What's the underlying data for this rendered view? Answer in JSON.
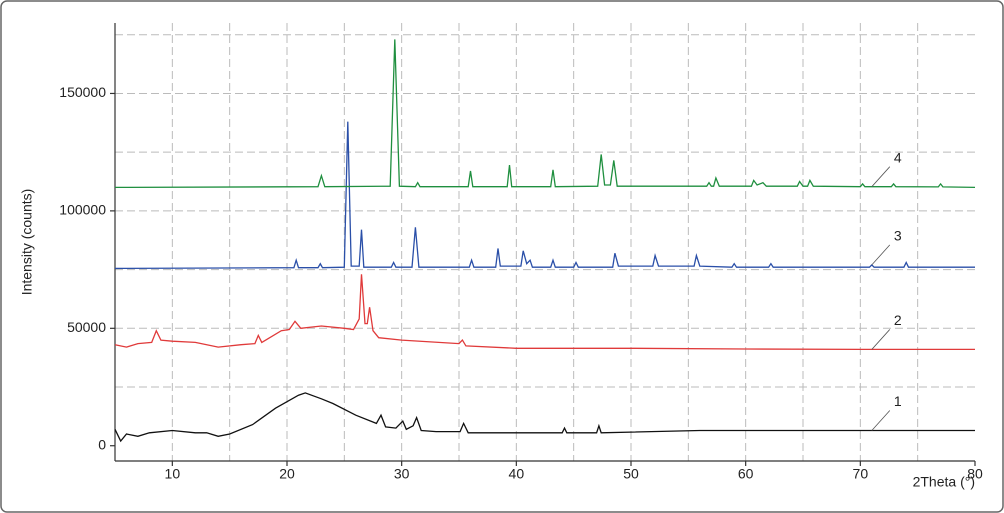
{
  "chart_data": {
    "type": "line",
    "x_label": "2Theta (°)",
    "y_label": "Intensity (counts)",
    "xlim": [
      5,
      80
    ],
    "ylim": [
      -6500,
      180000
    ],
    "xticks": [
      10,
      20,
      30,
      40,
      50,
      60,
      70,
      80
    ],
    "yticks": [
      0,
      50000,
      100000,
      150000
    ],
    "xgrid": [
      10,
      15,
      20,
      25,
      30,
      35,
      40,
      45,
      50,
      55,
      60,
      65,
      70,
      75
    ],
    "ygrid": [
      25000,
      50000,
      75000,
      100000,
      125000,
      150000,
      175000
    ],
    "grid": true,
    "series": [
      {
        "name": "1",
        "color": "#111111",
        "x": [
          5,
          5.5,
          6,
          7,
          8,
          10,
          12,
          13,
          14,
          15,
          17,
          19,
          21,
          21.6,
          23,
          24,
          26,
          27.8,
          28.2,
          28.6,
          29.5,
          30.1,
          30.4,
          31.0,
          31.3,
          31.7,
          33,
          35.1,
          35.4,
          35.8,
          40,
          44,
          44.2,
          44.4,
          47.0,
          47.2,
          47.4,
          56,
          60,
          70,
          80
        ],
        "values": [
          7000,
          2000,
          5000,
          4000,
          5500,
          6500,
          5500,
          5500,
          4000,
          5000,
          9000,
          16000,
          21500,
          22500,
          20000,
          18000,
          13000,
          9500,
          13000,
          8000,
          7500,
          10500,
          7000,
          8500,
          12000,
          6500,
          6000,
          6000,
          9500,
          5500,
          5500,
          5500,
          7500,
          5500,
          5500,
          8500,
          5500,
          6500,
          6500,
          6500,
          6500
        ]
      },
      {
        "name": "2",
        "color": "#e03a3a",
        "x": [
          5,
          6,
          7,
          8.2,
          8.6,
          9.0,
          10,
          12,
          14,
          16,
          17.2,
          17.5,
          17.8,
          19.5,
          20.2,
          20.7,
          21.2,
          23,
          25,
          25.8,
          26.3,
          26.5,
          26.8,
          27.0,
          27.2,
          27.5,
          28,
          30,
          35,
          35.3,
          35.6,
          40,
          45,
          50,
          60,
          70,
          80
        ],
        "values": [
          43000,
          42000,
          43500,
          44000,
          49000,
          45000,
          44500,
          44000,
          42000,
          43000,
          43500,
          47000,
          44000,
          49000,
          49500,
          53000,
          50000,
          51000,
          50000,
          49500,
          54000,
          73000,
          52000,
          52000,
          59000,
          49000,
          46000,
          45000,
          43500,
          45000,
          42500,
          41500,
          41500,
          41500,
          41200,
          41000,
          41000
        ]
      },
      {
        "name": "3",
        "color": "#2a4fa8",
        "x": [
          5,
          20.6,
          20.8,
          21.0,
          22.7,
          22.9,
          23.1,
          25.0,
          25.3,
          25.6,
          26.3,
          26.5,
          26.7,
          29.1,
          29.3,
          29.5,
          30.9,
          31.2,
          31.5,
          35.9,
          36.1,
          36.3,
          38.2,
          38.4,
          38.6,
          40.4,
          40.6,
          40.9,
          41.2,
          41.4,
          43.0,
          43.2,
          43.4,
          45.0,
          45.2,
          45.4,
          48.4,
          48.6,
          48.9,
          51.9,
          52.1,
          52.4,
          55.5,
          55.7,
          56.0,
          58.8,
          59.0,
          59.2,
          62.0,
          62.2,
          62.4,
          70.8,
          71.0,
          71.2,
          73.8,
          74.0,
          74.2,
          80
        ],
        "values": [
          75500,
          75800,
          79000,
          75800,
          75800,
          77500,
          75800,
          76000,
          138000,
          76500,
          76500,
          92000,
          76000,
          76000,
          78000,
          76000,
          76000,
          93000,
          76000,
          76000,
          79000,
          76000,
          76000,
          84000,
          76500,
          76500,
          83000,
          77500,
          79000,
          76000,
          76000,
          79000,
          76000,
          76000,
          78000,
          76000,
          76000,
          82000,
          76500,
          76500,
          81000,
          76500,
          76500,
          81000,
          76500,
          76000,
          77500,
          76000,
          76000,
          77500,
          76000,
          76000,
          77000,
          76000,
          76000,
          78000,
          76000,
          76000
        ]
      },
      {
        "name": "4",
        "color": "#1f8f3f",
        "x": [
          5,
          22.7,
          23.0,
          23.3,
          29.0,
          29.4,
          29.8,
          31.2,
          31.4,
          31.6,
          35.8,
          36.0,
          36.2,
          39.2,
          39.4,
          39.6,
          43.0,
          43.2,
          43.4,
          47.1,
          47.4,
          47.7,
          48.2,
          48.5,
          48.8,
          56.6,
          56.8,
          57.0,
          57.2,
          57.4,
          57.7,
          60.5,
          60.7,
          61.0,
          61.5,
          61.8,
          64.5,
          64.7,
          65.0,
          65.4,
          65.6,
          65.9,
          70.0,
          70.2,
          70.4,
          72.7,
          72.9,
          73.1,
          76.8,
          77.0,
          77.2,
          80
        ],
        "values": [
          110000,
          110300,
          115000,
          110300,
          110500,
          173000,
          110500,
          110300,
          112000,
          110300,
          110300,
          117000,
          110300,
          110300,
          119500,
          110300,
          110300,
          117500,
          110300,
          110500,
          124000,
          111000,
          111000,
          121500,
          110500,
          110500,
          112000,
          110500,
          110500,
          114000,
          110500,
          110500,
          113000,
          111000,
          112000,
          110500,
          110500,
          112500,
          110500,
          110500,
          113000,
          110500,
          110300,
          111500,
          110300,
          110300,
          111500,
          110300,
          110200,
          111500,
          110200,
          110000
        ]
      }
    ]
  }
}
